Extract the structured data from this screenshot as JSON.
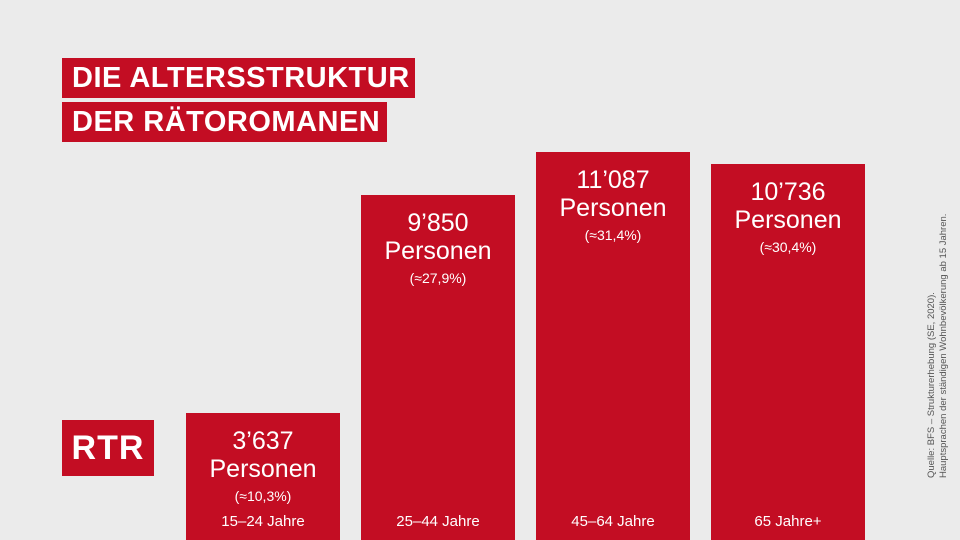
{
  "title": {
    "line1": "DIE ALTERSSTRUKTUR",
    "line2": "DER RÄTOROMANEN"
  },
  "logo": "RTR",
  "source": {
    "line1": "Quelle: BFS – Strukturerhebung (SE, 2020).",
    "line2": "Hauptsprachen der ständigen Wohnbevölkerung ab 15 Jahren."
  },
  "colors": {
    "bar": "#c30d23",
    "background": "#ebebeb",
    "text_on_bar": "#ffffff"
  },
  "chart_data": {
    "type": "bar",
    "title": "DIE ALTERSSTRUKTUR DER RÄTOROMANEN",
    "categories": [
      "15–24 Jahre",
      "25–44 Jahre",
      "45–64 Jahre",
      "65 Jahre+"
    ],
    "values": [
      3637,
      9850,
      11087,
      10736
    ],
    "value_labels": [
      "3’637",
      "9’850",
      "11’087",
      "10’736"
    ],
    "unit_label": "Personen",
    "percent_labels": [
      "(≈10,3%)",
      "(≈27,9%)",
      "(≈31,4%)",
      "(≈30,4%)"
    ],
    "percentages": [
      10.3,
      27.9,
      31.4,
      30.4
    ],
    "xlabel": "",
    "ylabel": "",
    "grid": false,
    "legend": "none"
  }
}
